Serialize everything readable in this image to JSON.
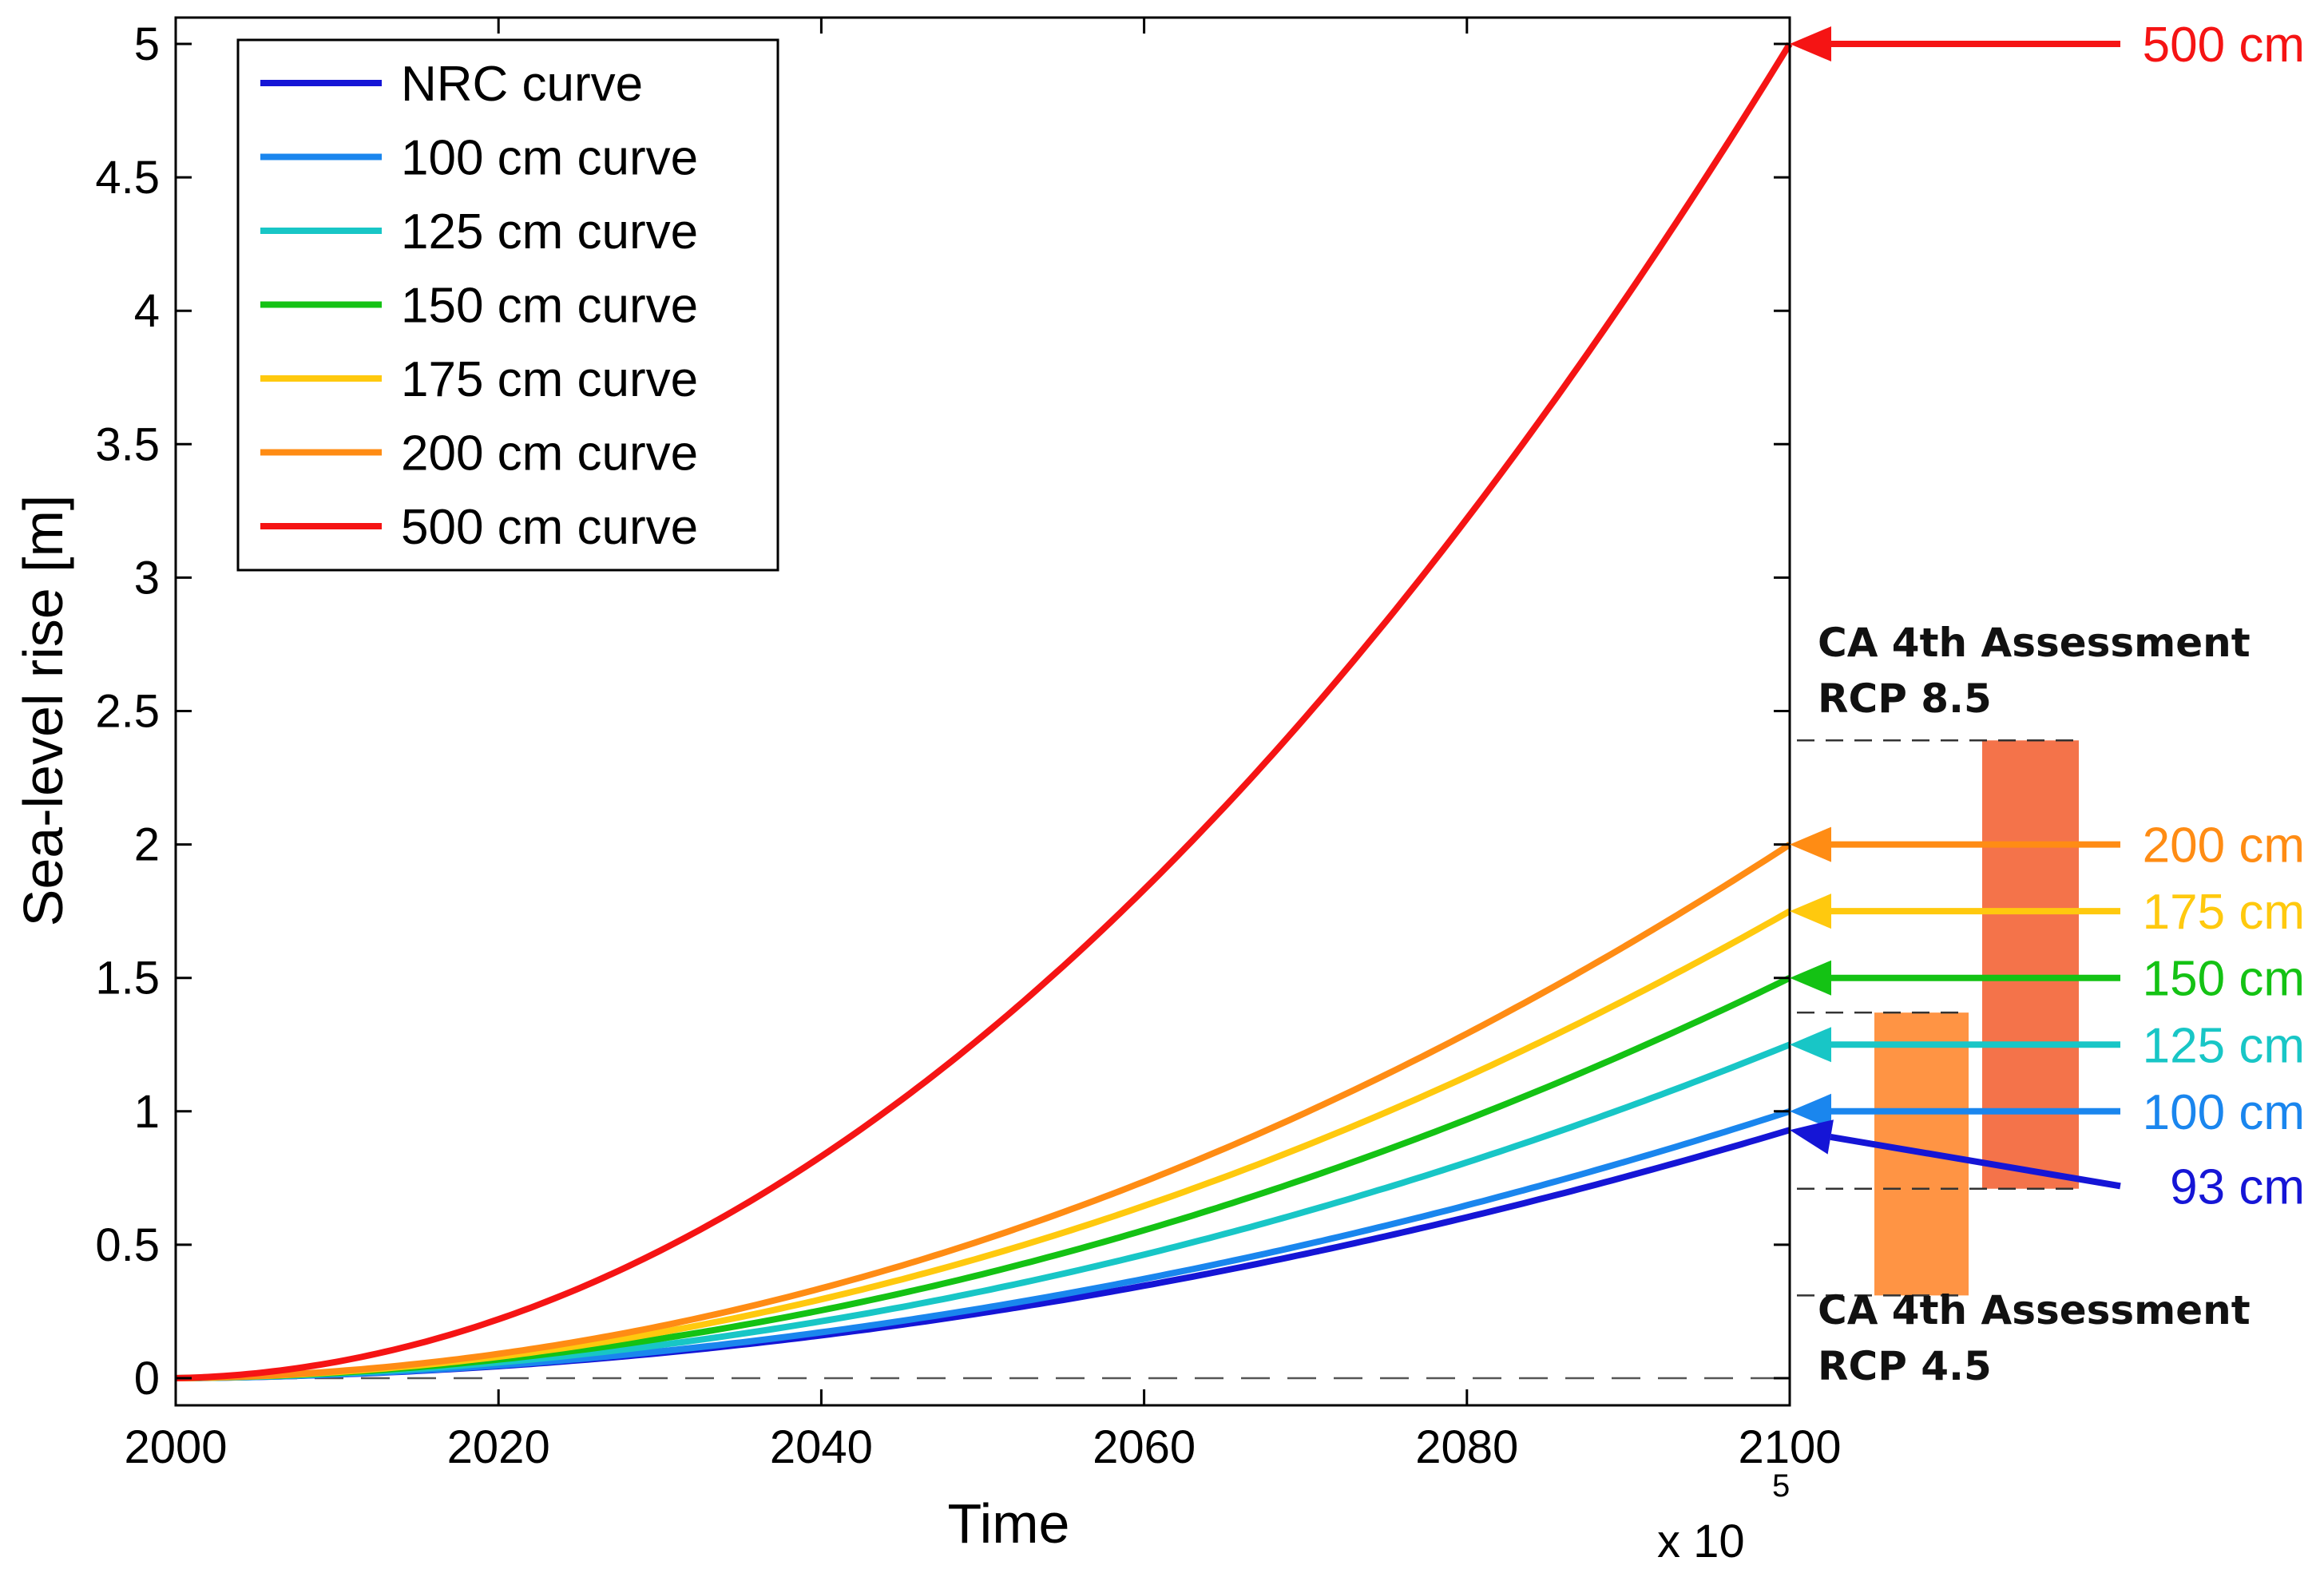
{
  "chart_data": {
    "type": "line",
    "xlabel": "Time",
    "ylabel": "Sea-level rise [m]",
    "x_multiplier_label": "x 10",
    "x_multiplier_exponent": "5",
    "xlim": [
      2000,
      2100
    ],
    "ylim": [
      -0.1,
      5.1
    ],
    "x_ticks": [
      "2000",
      "2020",
      "2040",
      "2060",
      "2080",
      "2100"
    ],
    "y_ticks": [
      "0",
      "0.5",
      "1",
      "1.5",
      "2",
      "2.5",
      "3",
      "3.5",
      "4",
      "4.5",
      "5"
    ],
    "legend_position": "top-left",
    "zero_line": "dashed",
    "series": [
      {
        "name": "NRC curve",
        "color": "#1515d6",
        "end_value": 0.93,
        "x": [
          2000,
          2100
        ],
        "y": [
          0,
          0.93
        ]
      },
      {
        "name": "100 cm curve",
        "color": "#1a86ee",
        "end_value": 1.0,
        "x": [
          2000,
          2100
        ],
        "y": [
          0,
          1.0
        ]
      },
      {
        "name": "125 cm curve",
        "color": "#18c6c6",
        "end_value": 1.25,
        "x": [
          2000,
          2100
        ],
        "y": [
          0,
          1.25
        ]
      },
      {
        "name": "150 cm curve",
        "color": "#14c214",
        "end_value": 1.5,
        "x": [
          2000,
          2100
        ],
        "y": [
          0,
          1.5
        ]
      },
      {
        "name": "175 cm curve",
        "color": "#ffc90e",
        "end_value": 1.75,
        "x": [
          2000,
          2100
        ],
        "y": [
          0,
          1.75
        ]
      },
      {
        "name": "200 cm curve",
        "color": "#ff8c14",
        "end_value": 2.0,
        "x": [
          2000,
          2100
        ],
        "y": [
          0,
          2.0
        ]
      },
      {
        "name": "500 cm curve",
        "color": "#f51414",
        "end_value": 5.0,
        "x": [
          2000,
          2100
        ],
        "y": [
          0,
          5.0
        ]
      }
    ],
    "arrow_labels": [
      {
        "text": "500 cm",
        "value": 5.0,
        "color": "#f51414"
      },
      {
        "text": "200 cm",
        "value": 2.0,
        "color": "#ff8c14"
      },
      {
        "text": "175 cm",
        "value": 1.75,
        "color": "#ffc90e"
      },
      {
        "text": "150 cm",
        "value": 1.5,
        "color": "#14c214"
      },
      {
        "text": "125 cm",
        "value": 1.25,
        "color": "#18c6c6"
      },
      {
        "text": "100 cm",
        "value": 1.0,
        "color": "#1a86ee"
      },
      {
        "text": "93 cm",
        "value": 0.93,
        "color": "#1515d6",
        "label_value": 0.72
      }
    ],
    "ranges": [
      {
        "label_line1": "CA 4th Assessment",
        "label_line2": "RCP 4.5",
        "low": 0.31,
        "high": 1.37,
        "color": "#ff9444"
      },
      {
        "label_line1": "CA 4th Assessment",
        "label_line2": "RCP 8.5",
        "low": 0.71,
        "high": 2.39,
        "color": "#f4734a"
      }
    ]
  }
}
